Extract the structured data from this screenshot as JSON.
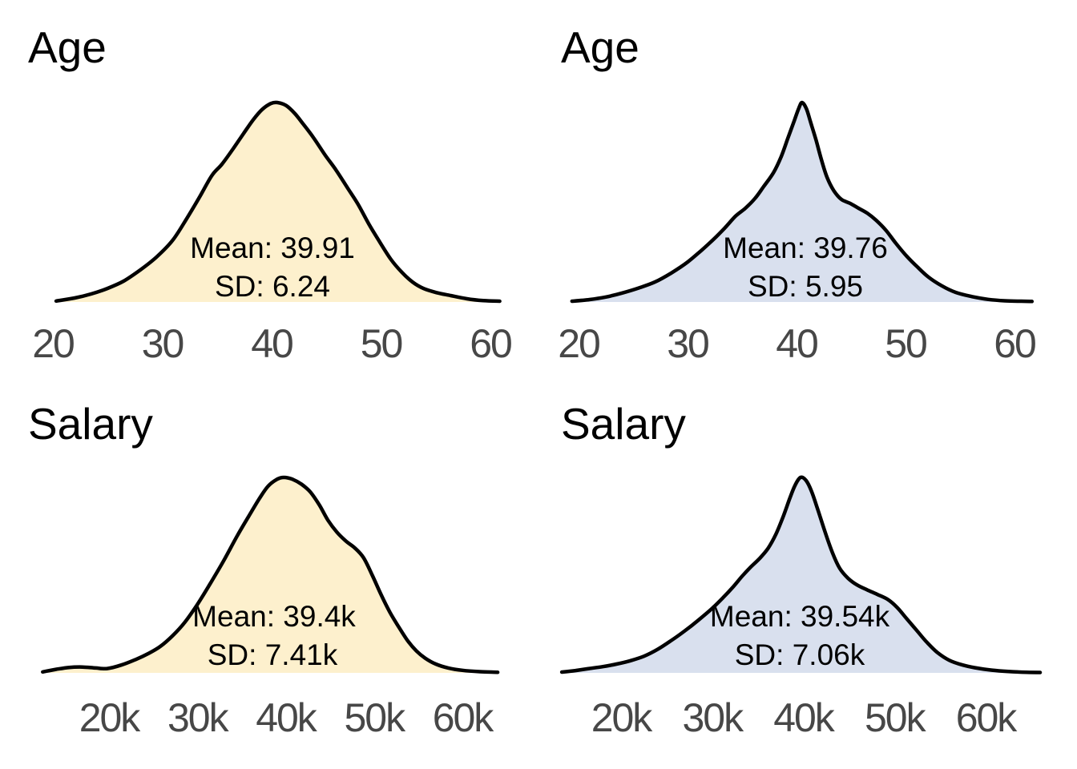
{
  "page": {
    "background": "#ffffff",
    "text_color": "#000000",
    "tick_color": "#474747"
  },
  "chart_data": [
    {
      "type": "area",
      "variable": "Age",
      "title": "Age",
      "mean": 39.91,
      "sd": 6.24,
      "mean_label": "Mean: 39.91",
      "sd_label": "SD: 6.24",
      "fill_color": "#fdf0cd",
      "stroke_color": "#000000",
      "tick_labels": [
        "20",
        "30",
        "40",
        "50",
        "60"
      ],
      "tick_values": [
        20,
        30,
        40,
        50,
        60
      ],
      "x_range": [
        20,
        61
      ],
      "grid": false,
      "curve": [
        [
          20.3,
          0.005
        ],
        [
          22,
          0.02
        ],
        [
          23.5,
          0.04
        ],
        [
          25,
          0.068
        ],
        [
          26.5,
          0.105
        ],
        [
          28,
          0.16
        ],
        [
          29.5,
          0.225
        ],
        [
          31,
          0.31
        ],
        [
          32.3,
          0.42
        ],
        [
          33.5,
          0.53
        ],
        [
          34.6,
          0.635
        ],
        [
          35.5,
          0.69
        ],
        [
          36.5,
          0.765
        ],
        [
          37.5,
          0.845
        ],
        [
          38.4,
          0.915
        ],
        [
          39.2,
          0.965
        ],
        [
          40,
          0.995
        ],
        [
          40.6,
          1.0
        ],
        [
          41.4,
          0.985
        ],
        [
          42.2,
          0.945
        ],
        [
          43,
          0.89
        ],
        [
          43.9,
          0.825
        ],
        [
          45,
          0.735
        ],
        [
          46,
          0.66
        ],
        [
          47,
          0.575
        ],
        [
          48,
          0.49
        ],
        [
          49,
          0.39
        ],
        [
          50,
          0.3
        ],
        [
          51,
          0.215
        ],
        [
          52,
          0.15
        ],
        [
          53,
          0.1
        ],
        [
          54,
          0.068
        ],
        [
          55.2,
          0.047
        ],
        [
          56.5,
          0.032
        ],
        [
          58,
          0.016
        ],
        [
          59.5,
          0.007
        ],
        [
          61,
          0.004
        ]
      ]
    },
    {
      "type": "area",
      "variable": "Age",
      "title": "Age",
      "mean": 39.76,
      "sd": 5.95,
      "mean_label": "Mean: 39.76",
      "sd_label": "SD: 5.95",
      "fill_color": "#d9e0ee",
      "stroke_color": "#000000",
      "tick_labels": [
        "20",
        "30",
        "40",
        "50",
        "60"
      ],
      "tick_values": [
        20,
        30,
        40,
        50,
        60
      ],
      "x_range": [
        19.4,
        61.6
      ],
      "grid": false,
      "curve": [
        [
          19.4,
          0.004
        ],
        [
          21,
          0.012
        ],
        [
          22.5,
          0.025
        ],
        [
          24,
          0.045
        ],
        [
          25.5,
          0.07
        ],
        [
          27,
          0.1
        ],
        [
          28.5,
          0.145
        ],
        [
          30,
          0.2
        ],
        [
          31.3,
          0.26
        ],
        [
          32.4,
          0.315
        ],
        [
          33.4,
          0.37
        ],
        [
          34.4,
          0.43
        ],
        [
          35.3,
          0.47
        ],
        [
          36.2,
          0.52
        ],
        [
          37,
          0.58
        ],
        [
          37.9,
          0.65
        ],
        [
          38.6,
          0.73
        ],
        [
          39.2,
          0.82
        ],
        [
          39.8,
          0.91
        ],
        [
          40.2,
          0.97
        ],
        [
          40.5,
          1.0
        ],
        [
          40.9,
          0.97
        ],
        [
          41.3,
          0.9
        ],
        [
          41.8,
          0.81
        ],
        [
          42.3,
          0.71
        ],
        [
          42.8,
          0.625
        ],
        [
          43.4,
          0.56
        ],
        [
          44.1,
          0.515
        ],
        [
          44.9,
          0.495
        ],
        [
          45.7,
          0.47
        ],
        [
          46.5,
          0.445
        ],
        [
          47.3,
          0.41
        ],
        [
          48.2,
          0.36
        ],
        [
          49.1,
          0.295
        ],
        [
          50.1,
          0.23
        ],
        [
          51.1,
          0.175
        ],
        [
          52.1,
          0.125
        ],
        [
          53.3,
          0.082
        ],
        [
          54.6,
          0.048
        ],
        [
          56.1,
          0.027
        ],
        [
          57.6,
          0.013
        ],
        [
          59.1,
          0.006
        ],
        [
          60.6,
          0.004
        ],
        [
          61.6,
          0.003
        ]
      ]
    },
    {
      "type": "area",
      "variable": "Salary",
      "title": "Salary",
      "mean": "39.4k",
      "sd": "7.41k",
      "mean_label": "Mean: 39.4k",
      "sd_label": "SD: 7.41k",
      "fill_color": "#fdf0cd",
      "stroke_color": "#000000",
      "tick_labels": [
        "20k",
        "30k",
        "40k",
        "50k",
        "60k"
      ],
      "tick_values": [
        20,
        30,
        40,
        50,
        60
      ],
      "x_unit": "thousands",
      "x_range": [
        12.5,
        64
      ],
      "grid": false,
      "curve": [
        [
          12.5,
          0.005
        ],
        [
          14,
          0.018
        ],
        [
          15.5,
          0.028
        ],
        [
          17,
          0.03
        ],
        [
          18.5,
          0.025
        ],
        [
          19.8,
          0.022
        ],
        [
          21.4,
          0.04
        ],
        [
          23,
          0.068
        ],
        [
          24.5,
          0.1
        ],
        [
          25.8,
          0.135
        ],
        [
          27.2,
          0.19
        ],
        [
          28.6,
          0.26
        ],
        [
          30,
          0.35
        ],
        [
          31.5,
          0.46
        ],
        [
          33,
          0.575
        ],
        [
          34.5,
          0.7
        ],
        [
          35.8,
          0.8
        ],
        [
          37,
          0.89
        ],
        [
          38,
          0.955
        ],
        [
          39,
          0.99
        ],
        [
          39.8,
          1.0
        ],
        [
          40.8,
          0.99
        ],
        [
          41.8,
          0.965
        ],
        [
          42.8,
          0.925
        ],
        [
          43.8,
          0.86
        ],
        [
          44.8,
          0.78
        ],
        [
          45.8,
          0.72
        ],
        [
          46.8,
          0.675
        ],
        [
          47.8,
          0.64
        ],
        [
          48.8,
          0.59
        ],
        [
          49.8,
          0.5
        ],
        [
          50.8,
          0.4
        ],
        [
          51.8,
          0.31
        ],
        [
          52.8,
          0.235
        ],
        [
          53.8,
          0.165
        ],
        [
          54.8,
          0.112
        ],
        [
          55.8,
          0.075
        ],
        [
          57,
          0.045
        ],
        [
          58.4,
          0.025
        ],
        [
          60,
          0.013
        ],
        [
          62,
          0.006
        ],
        [
          64,
          0.003
        ]
      ]
    },
    {
      "type": "area",
      "variable": "Salary",
      "title": "Salary",
      "mean": "39.54k",
      "sd": "7.06k",
      "mean_label": "Mean: 39.54k",
      "sd_label": "SD: 7.06k",
      "fill_color": "#d9e0ee",
      "stroke_color": "#000000",
      "tick_labels": [
        "20k",
        "30k",
        "40k",
        "50k",
        "60k"
      ],
      "tick_values": [
        20,
        30,
        40,
        50,
        60
      ],
      "x_unit": "thousands",
      "x_range": [
        13.5,
        66
      ],
      "grid": false,
      "curve": [
        [
          13.5,
          0.004
        ],
        [
          15,
          0.012
        ],
        [
          16.5,
          0.022
        ],
        [
          18,
          0.032
        ],
        [
          19.5,
          0.045
        ],
        [
          21,
          0.062
        ],
        [
          22.5,
          0.085
        ],
        [
          24,
          0.12
        ],
        [
          25.5,
          0.165
        ],
        [
          27,
          0.215
        ],
        [
          28.5,
          0.27
        ],
        [
          30,
          0.33
        ],
        [
          31.2,
          0.385
        ],
        [
          32.3,
          0.44
        ],
        [
          33.3,
          0.495
        ],
        [
          34.2,
          0.54
        ],
        [
          35.2,
          0.585
        ],
        [
          36.1,
          0.635
        ],
        [
          37,
          0.71
        ],
        [
          37.8,
          0.8
        ],
        [
          38.5,
          0.89
        ],
        [
          39.1,
          0.96
        ],
        [
          39.7,
          1.0
        ],
        [
          40.3,
          0.985
        ],
        [
          40.9,
          0.93
        ],
        [
          41.6,
          0.835
        ],
        [
          42.4,
          0.72
        ],
        [
          43.2,
          0.615
        ],
        [
          44,
          0.535
        ],
        [
          44.9,
          0.485
        ],
        [
          45.9,
          0.45
        ],
        [
          47,
          0.425
        ],
        [
          48.2,
          0.4
        ],
        [
          49.3,
          0.375
        ],
        [
          50.3,
          0.335
        ],
        [
          51.3,
          0.28
        ],
        [
          52.4,
          0.22
        ],
        [
          53.5,
          0.16
        ],
        [
          54.7,
          0.105
        ],
        [
          56,
          0.065
        ],
        [
          57.5,
          0.04
        ],
        [
          59,
          0.025
        ],
        [
          60.7,
          0.014
        ],
        [
          62.5,
          0.007
        ],
        [
          64.5,
          0.003
        ],
        [
          66,
          0.002
        ]
      ]
    }
  ]
}
